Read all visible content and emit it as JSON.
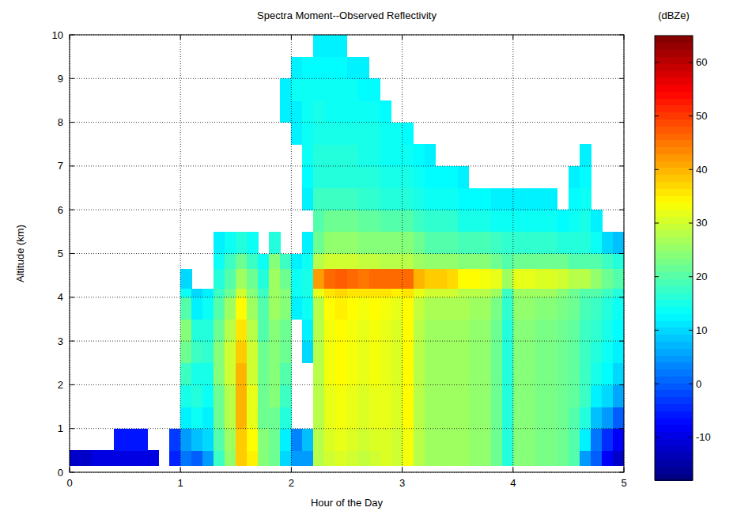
{
  "chart_data": {
    "type": "heatmap",
    "title": "Spectra Moment--Observed Reflectivity",
    "x_label": "Hour of the Day",
    "y_label": "Altitude (km)",
    "xlim": [
      0,
      5
    ],
    "ylim": [
      0,
      10
    ],
    "xticks": [
      0,
      1,
      2,
      3,
      4,
      5
    ],
    "yticks": [
      0,
      1,
      2,
      3,
      4,
      5,
      6,
      7,
      8,
      9,
      10
    ],
    "grid": true,
    "x_edges": [
      0,
      0.1,
      0.2,
      0.3,
      0.4,
      0.5,
      0.6,
      0.7,
      0.8,
      0.9,
      1,
      1.1,
      1.2,
      1.3,
      1.4,
      1.5,
      1.6,
      1.7,
      1.8,
      1.9,
      2,
      2.1,
      2.2,
      2.3,
      2.4,
      2.5,
      2.6,
      2.7,
      2.8,
      2.9,
      3,
      3.1,
      3.2,
      3.3,
      3.4,
      3.5,
      3.6,
      3.7,
      3.8,
      3.9,
      4,
      4.1,
      4.2,
      4.3,
      4.4,
      4.5,
      4.6,
      4.7,
      4.8,
      4.9,
      5
    ],
    "y_edges": [
      0.15,
      0.5,
      1,
      1.5,
      2,
      2.5,
      3,
      3.5,
      4,
      4.2,
      4.65,
      5,
      5.5,
      6,
      6.5,
      7,
      7.5,
      8,
      8.5,
      9,
      9.5,
      10
    ],
    "values": [
      [
        -12,
        null,
        null,
        null,
        null,
        null,
        null,
        null,
        null,
        null,
        null,
        null,
        null,
        null,
        null,
        null,
        null,
        null,
        null,
        null,
        null
      ],
      [
        -12,
        null,
        null,
        null,
        null,
        null,
        null,
        null,
        null,
        null,
        null,
        null,
        null,
        null,
        null,
        null,
        null,
        null,
        null,
        null,
        null
      ],
      [
        -10,
        null,
        null,
        null,
        null,
        null,
        null,
        null,
        null,
        null,
        null,
        null,
        null,
        null,
        null,
        null,
        null,
        null,
        null,
        null,
        null
      ],
      [
        -10,
        null,
        null,
        null,
        null,
        null,
        null,
        null,
        null,
        null,
        null,
        null,
        null,
        null,
        null,
        null,
        null,
        null,
        null,
        null,
        null
      ],
      [
        -10,
        -6,
        null,
        null,
        null,
        null,
        null,
        null,
        null,
        null,
        null,
        null,
        null,
        null,
        null,
        null,
        null,
        null,
        null,
        null,
        null
      ],
      [
        -10,
        -6,
        null,
        null,
        null,
        null,
        null,
        null,
        null,
        null,
        null,
        null,
        null,
        null,
        null,
        null,
        null,
        null,
        null,
        null,
        null
      ],
      [
        -10,
        -6,
        null,
        null,
        null,
        null,
        null,
        null,
        null,
        null,
        null,
        null,
        null,
        null,
        null,
        null,
        null,
        null,
        null,
        null,
        null
      ],
      [
        -10,
        null,
        null,
        null,
        null,
        null,
        null,
        null,
        null,
        null,
        null,
        null,
        null,
        null,
        null,
        null,
        null,
        null,
        null,
        null,
        null
      ],
      [
        null,
        null,
        null,
        null,
        null,
        null,
        null,
        null,
        null,
        null,
        null,
        null,
        null,
        null,
        null,
        null,
        null,
        null,
        null,
        null,
        null
      ],
      [
        -5,
        -3,
        null,
        null,
        null,
        null,
        null,
        null,
        null,
        null,
        null,
        null,
        null,
        null,
        null,
        null,
        null,
        null,
        null,
        null,
        null
      ],
      [
        2,
        5,
        12,
        15,
        18,
        22,
        24,
        20,
        14,
        10,
        null,
        null,
        null,
        null,
        null,
        null,
        null,
        null,
        null,
        null,
        null
      ],
      [
        0,
        8,
        14,
        16,
        15,
        18,
        16,
        12,
        10,
        null,
        null,
        null,
        null,
        null,
        null,
        null,
        null,
        null,
        null,
        null,
        null
      ],
      [
        5,
        10,
        12,
        14,
        15,
        17,
        16,
        14,
        12,
        null,
        null,
        null,
        null,
        null,
        null,
        null,
        null,
        null,
        null,
        null,
        null
      ],
      [
        18,
        20,
        22,
        22,
        24,
        24,
        22,
        20,
        18,
        16,
        14,
        12,
        null,
        null,
        null,
        null,
        null,
        null,
        null,
        null,
        null
      ],
      [
        25,
        26,
        28,
        28,
        30,
        30,
        28,
        26,
        22,
        20,
        18,
        14,
        null,
        null,
        null,
        null,
        null,
        null,
        null,
        null,
        null
      ],
      [
        38,
        38,
        40,
        40,
        40,
        38,
        36,
        34,
        30,
        26,
        22,
        16,
        null,
        null,
        null,
        null,
        null,
        null,
        null,
        null,
        null
      ],
      [
        35,
        34,
        32,
        32,
        30,
        30,
        28,
        26,
        24,
        22,
        18,
        14,
        null,
        null,
        null,
        null,
        null,
        null,
        null,
        null,
        null
      ],
      [
        24,
        24,
        22,
        22,
        22,
        22,
        20,
        20,
        18,
        16,
        14,
        null,
        null,
        null,
        null,
        null,
        null,
        null,
        null,
        null,
        null
      ],
      [
        22,
        22,
        22,
        24,
        24,
        24,
        24,
        26,
        26,
        26,
        24,
        16,
        null,
        null,
        null,
        null,
        null,
        null,
        null,
        null,
        null
      ],
      [
        10,
        12,
        16,
        18,
        20,
        22,
        22,
        24,
        24,
        22,
        18,
        null,
        null,
        null,
        null,
        null,
        null,
        12,
        12,
        null,
        null
      ],
      [
        5,
        3,
        null,
        null,
        null,
        null,
        null,
        12,
        14,
        14,
        12,
        null,
        null,
        null,
        null,
        null,
        12,
        12,
        14,
        12,
        null
      ],
      [
        5,
        8,
        null,
        null,
        null,
        10,
        12,
        14,
        15,
        15,
        14,
        12,
        null,
        12,
        13,
        14,
        14,
        14,
        14,
        13,
        null
      ],
      [
        28,
        28,
        28,
        28,
        28,
        28,
        28,
        28,
        32,
        42,
        28,
        22,
        20,
        18,
        16,
        16,
        15,
        15,
        14,
        13,
        12
      ],
      [
        30,
        31,
        32,
        32,
        33,
        33,
        33,
        34,
        36,
        46,
        30,
        25,
        22,
        18,
        16,
        16,
        15,
        14,
        14,
        13,
        12
      ],
      [
        31,
        32,
        33,
        33,
        34,
        34,
        34,
        35,
        37,
        47,
        30,
        25,
        22,
        18,
        16,
        16,
        15,
        14,
        14,
        13,
        12
      ],
      [
        30,
        31,
        32,
        32,
        33,
        33,
        33,
        34,
        36,
        46,
        30,
        25,
        22,
        18,
        16,
        16,
        15,
        14,
        14,
        12,
        null
      ],
      [
        29,
        30,
        31,
        31,
        32,
        32,
        32,
        33,
        36,
        45,
        29,
        24,
        21,
        17,
        16,
        15,
        15,
        14,
        13,
        12,
        null
      ],
      [
        30,
        31,
        32,
        32,
        33,
        33,
        33,
        34,
        36,
        46,
        29,
        24,
        21,
        17,
        16,
        15,
        15,
        14,
        13,
        null,
        null
      ],
      [
        31,
        31,
        32,
        32,
        32,
        32,
        32,
        33,
        36,
        46,
        28,
        24,
        20,
        16,
        15,
        14,
        14,
        13,
        null,
        null,
        null
      ],
      [
        30,
        30,
        31,
        31,
        31,
        31,
        31,
        32,
        35,
        46,
        28,
        24,
        20,
        16,
        15,
        14,
        14,
        null,
        null,
        null,
        null
      ],
      [
        33,
        33,
        34,
        34,
        34,
        34,
        34,
        34,
        36,
        46,
        28,
        24,
        20,
        16,
        15,
        14,
        13,
        null,
        null,
        null,
        null
      ],
      [
        28,
        28,
        28,
        28,
        28,
        28,
        28,
        29,
        32,
        40,
        26,
        22,
        18,
        15,
        14,
        13,
        null,
        null,
        null,
        null,
        null
      ],
      [
        26,
        26,
        26,
        26,
        26,
        26,
        26,
        27,
        30,
        38,
        25,
        20,
        17,
        14,
        13,
        12,
        null,
        null,
        null,
        null,
        null
      ],
      [
        26,
        26,
        26,
        26,
        26,
        26,
        26,
        27,
        30,
        38,
        25,
        20,
        17,
        14,
        13,
        null,
        null,
        null,
        null,
        null,
        null
      ],
      [
        26,
        26,
        26,
        26,
        26,
        26,
        26,
        27,
        30,
        37,
        25,
        20,
        17,
        14,
        13,
        null,
        null,
        null,
        null,
        null,
        null
      ],
      [
        26,
        26,
        26,
        26,
        26,
        26,
        26,
        27,
        28,
        34,
        24,
        19,
        15,
        13,
        12,
        null,
        null,
        null,
        null,
        null,
        null
      ],
      [
        25,
        25,
        25,
        25,
        25,
        25,
        25,
        26,
        28,
        34,
        24,
        19,
        15,
        13,
        null,
        null,
        null,
        null,
        null,
        null,
        null
      ],
      [
        25,
        25,
        25,
        25,
        25,
        25,
        25,
        26,
        28,
        33,
        24,
        19,
        15,
        13,
        null,
        null,
        null,
        null,
        null,
        null,
        null
      ],
      [
        22,
        22,
        22,
        22,
        22,
        22,
        22,
        23,
        26,
        32,
        22,
        18,
        14,
        12,
        null,
        null,
        null,
        null,
        null,
        null,
        null
      ],
      [
        16,
        16,
        16,
        16,
        16,
        16,
        16,
        17,
        18,
        26,
        20,
        17,
        14,
        12,
        null,
        null,
        null,
        null,
        null,
        null,
        null
      ],
      [
        24,
        24,
        24,
        24,
        24,
        24,
        24,
        25,
        26,
        32,
        22,
        17,
        14,
        12,
        null,
        null,
        null,
        null,
        null,
        null,
        null
      ],
      [
        24,
        24,
        24,
        24,
        24,
        24,
        24,
        25,
        26,
        32,
        22,
        17,
        14,
        12,
        null,
        null,
        null,
        null,
        null,
        null,
        null
      ],
      [
        23,
        23,
        23,
        23,
        23,
        23,
        23,
        24,
        26,
        31,
        22,
        17,
        14,
        12,
        null,
        null,
        null,
        null,
        null,
        null,
        null
      ],
      [
        23,
        23,
        23,
        23,
        23,
        23,
        23,
        24,
        26,
        31,
        22,
        17,
        14,
        12,
        null,
        null,
        null,
        null,
        null,
        null,
        null
      ],
      [
        22,
        22,
        22,
        22,
        22,
        22,
        22,
        23,
        24,
        30,
        22,
        16,
        13,
        null,
        null,
        null,
        null,
        null,
        null,
        null,
        null
      ],
      [
        20,
        20,
        20,
        21,
        21,
        21,
        21,
        22,
        22,
        28,
        20,
        16,
        14,
        13,
        12,
        null,
        null,
        null,
        null,
        null,
        null
      ],
      [
        5,
        12,
        16,
        18,
        18,
        18,
        18,
        19,
        20,
        28,
        20,
        16,
        15,
        14,
        13,
        12,
        null,
        null,
        null,
        null,
        null
      ],
      [
        0,
        2,
        8,
        12,
        15,
        16,
        17,
        18,
        20,
        25,
        20,
        14,
        12,
        null,
        null,
        null,
        null,
        null,
        null,
        null,
        null
      ],
      [
        -8,
        -4,
        5,
        10,
        13,
        14,
        15,
        16,
        18,
        22,
        18,
        10,
        null,
        null,
        null,
        null,
        null,
        null,
        null,
        null,
        null
      ],
      [
        -12,
        -8,
        0,
        6,
        10,
        12,
        13,
        14,
        16,
        20,
        16,
        8,
        null,
        null,
        null,
        null,
        null,
        null,
        null,
        null,
        null
      ]
    ],
    "colorbar": {
      "label": "(dBZe)",
      "range": [
        -18,
        65
      ],
      "ticks": [
        -10,
        0,
        10,
        20,
        30,
        40,
        50,
        60
      ]
    }
  }
}
